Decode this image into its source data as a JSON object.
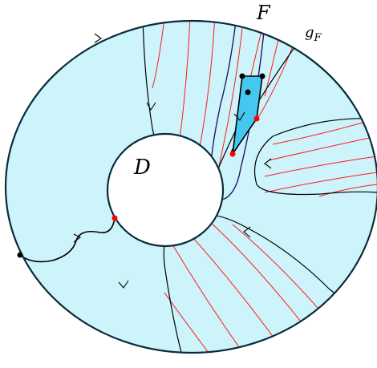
{
  "labels": {
    "disk_inner": "D",
    "face": "F",
    "curve_label": "g_F"
  },
  "colors": {
    "annulus_fill": "#cdf3fb",
    "outline": "#0b2b3a",
    "red_curves": "#ff1a1a",
    "purple_curve": "#1c0a5a",
    "black_curves": "#000000",
    "shaded_region": "#45c8f0",
    "red_points": "#ff0000",
    "black_points": "#000000"
  }
}
